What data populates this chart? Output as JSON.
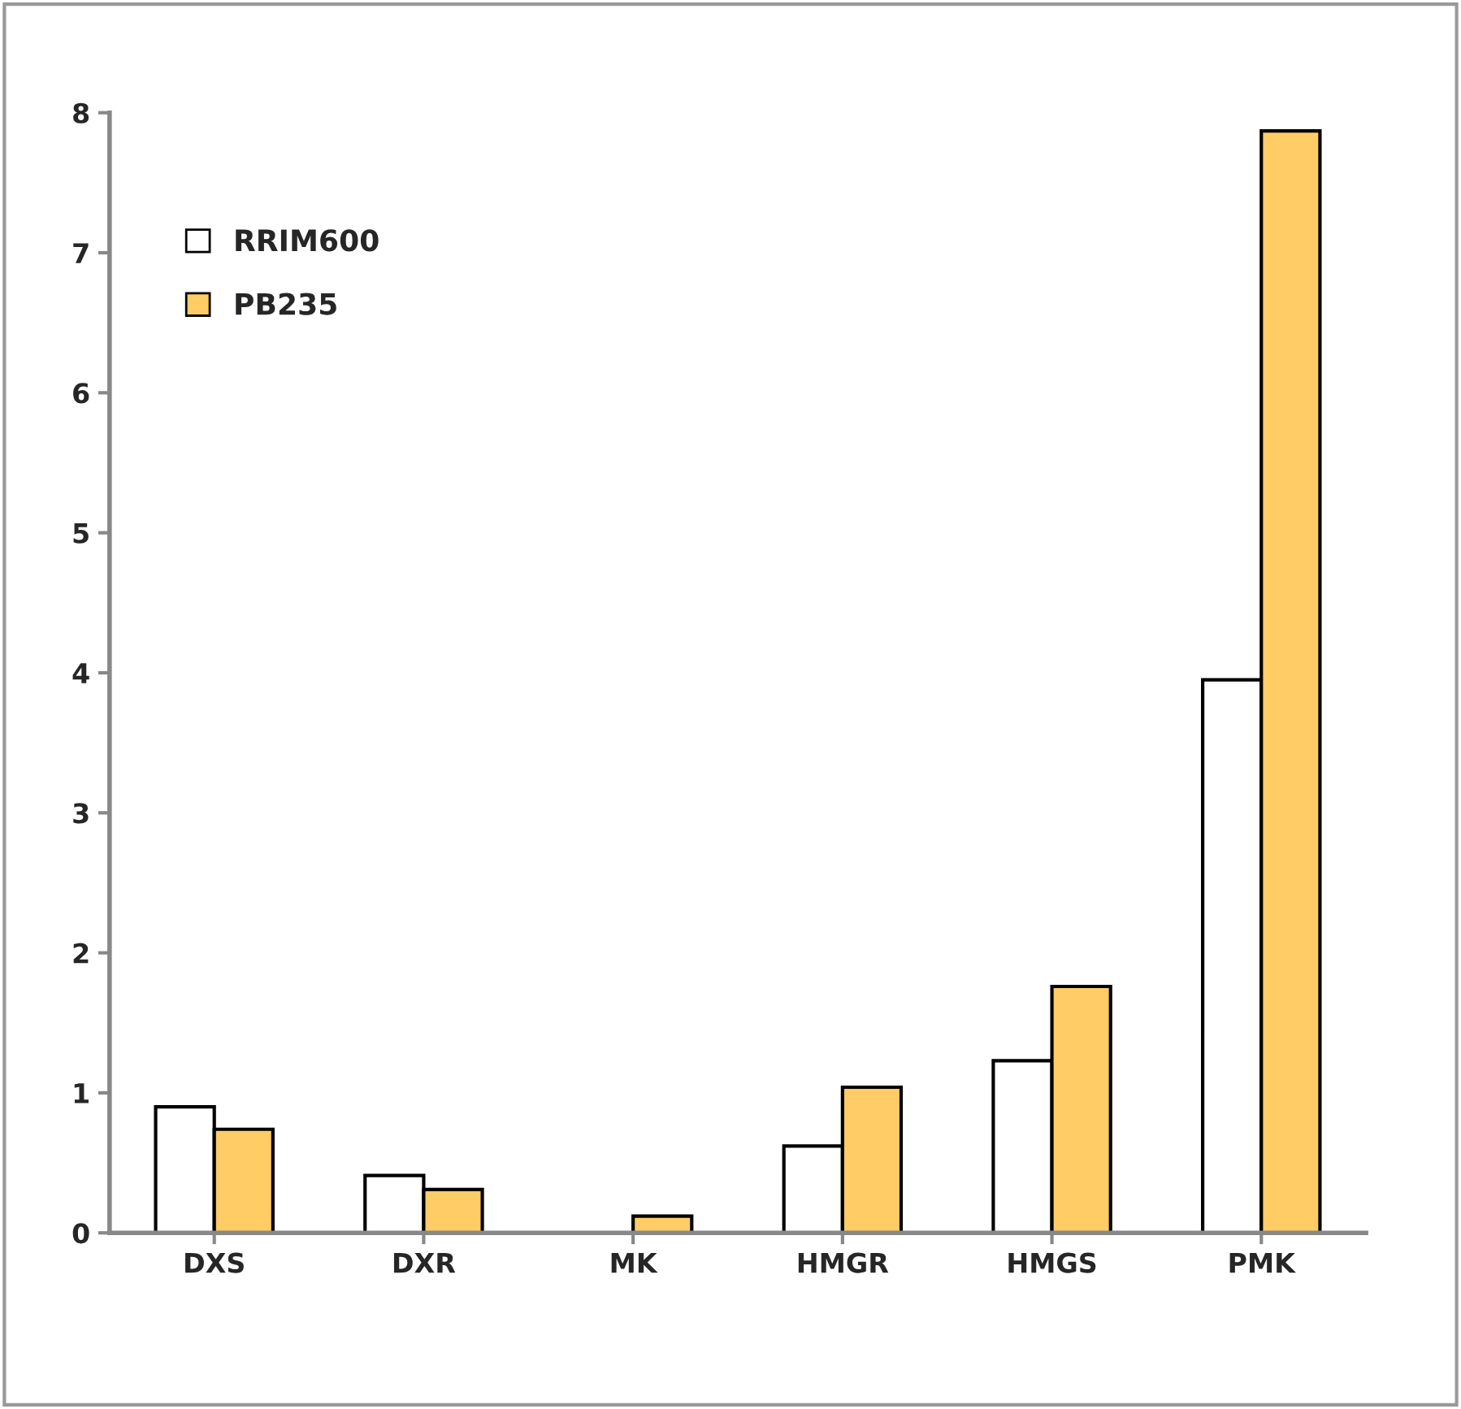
{
  "chart_data": {
    "type": "bar",
    "categories": [
      "DXS",
      "DXR",
      "MK",
      "HMGR",
      "HMGS",
      "PMK"
    ],
    "series": [
      {
        "name": "RRIM600",
        "color": "#ffffff",
        "values": [
          0.9,
          0.41,
          null,
          0.62,
          1.23,
          3.95
        ]
      },
      {
        "name": "PB235",
        "color": "#ffcc66",
        "values": [
          0.74,
          0.31,
          0.12,
          1.04,
          1.76,
          7.87
        ]
      }
    ],
    "ylim": [
      0,
      8
    ],
    "yticks": [
      0,
      1,
      2,
      3,
      4,
      5,
      6,
      7,
      8
    ],
    "grid": false,
    "legend": "top left"
  }
}
